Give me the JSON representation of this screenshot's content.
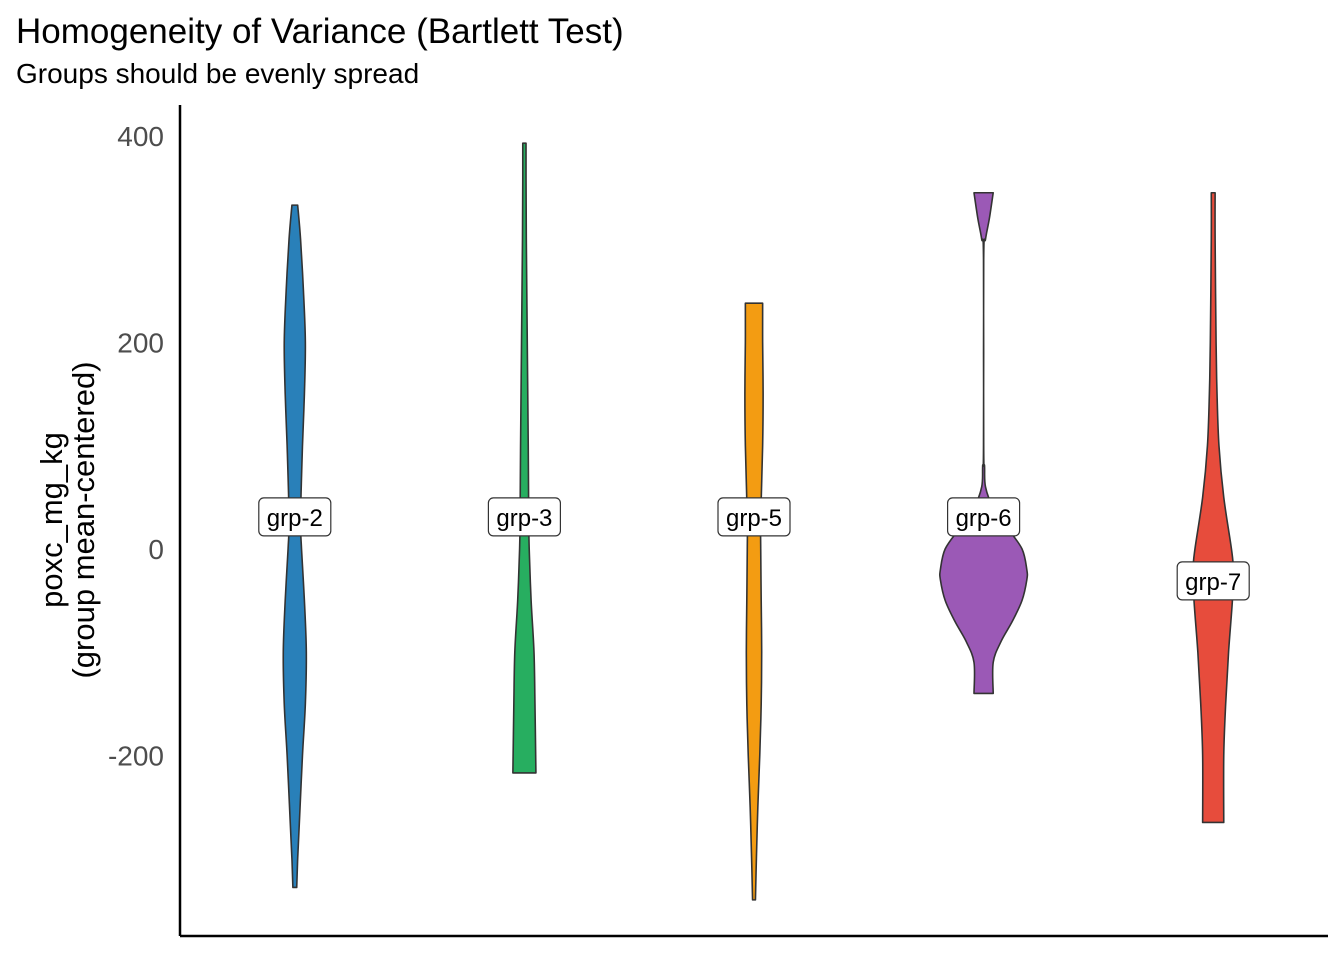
{
  "chart_data": {
    "type": "violin",
    "title": "Homogeneity of Variance (Bartlett Test)",
    "subtitle": "Groups should be evenly spread",
    "ylabel_line1": "poxc_mg_kg",
    "ylabel_line2": "(group mean-centered)",
    "xlabel": "",
    "ylim": [
      -375,
      430
    ],
    "yticks": [
      -200,
      0,
      200,
      400
    ],
    "grid": false,
    "legend": "none",
    "series": [
      {
        "name": "grp-2",
        "color": "#2980b9",
        "label_y": 30,
        "profile": [
          [
            -328,
            2
          ],
          [
            -300,
            3
          ],
          [
            -260,
            5
          ],
          [
            -200,
            8
          ],
          [
            -150,
            11
          ],
          [
            -100,
            12
          ],
          [
            -50,
            10
          ],
          [
            0,
            7
          ],
          [
            30,
            6
          ],
          [
            100,
            8
          ],
          [
            150,
            10
          ],
          [
            200,
            11
          ],
          [
            250,
            9
          ],
          [
            300,
            6
          ],
          [
            333,
            3
          ]
        ]
      },
      {
        "name": "grp-3",
        "color": "#27ae60",
        "label_y": 30,
        "profile": [
          [
            -217,
            12
          ],
          [
            -150,
            11
          ],
          [
            -100,
            10
          ],
          [
            -50,
            7
          ],
          [
            0,
            5
          ],
          [
            30,
            4.5
          ],
          [
            100,
            4
          ],
          [
            200,
            3
          ],
          [
            300,
            2
          ],
          [
            360,
            1.7
          ],
          [
            393,
            1.7
          ]
        ]
      },
      {
        "name": "grp-5",
        "color": "#f39c12",
        "label_y": 30,
        "profile": [
          [
            -340,
            1.5
          ],
          [
            -300,
            2.5
          ],
          [
            -250,
            4
          ],
          [
            -200,
            6
          ],
          [
            -150,
            7.5
          ],
          [
            -100,
            8
          ],
          [
            -50,
            7.5
          ],
          [
            0,
            7
          ],
          [
            30,
            7
          ],
          [
            100,
            9
          ],
          [
            150,
            9.5
          ],
          [
            200,
            9
          ],
          [
            238,
            9
          ]
        ]
      },
      {
        "name": "grp-6",
        "color": "#9b59b6",
        "label_y": 30,
        "profile": [
          [
            -140,
            10
          ],
          [
            -110,
            10
          ],
          [
            -90,
            18
          ],
          [
            -70,
            30
          ],
          [
            -50,
            40
          ],
          [
            -30,
            45
          ],
          [
            -20,
            45
          ],
          [
            0,
            40
          ],
          [
            20,
            25
          ],
          [
            40,
            10
          ],
          [
            60,
            2
          ],
          [
            80,
            1
          ],
          [
            100,
            0.1
          ],
          [
            280,
            0.1
          ],
          [
            300,
            2
          ],
          [
            320,
            6
          ],
          [
            345,
            10
          ]
        ]
      },
      {
        "name": "grp-7",
        "color": "#e74c3c",
        "label_y": -32,
        "profile": [
          [
            -265,
            11
          ],
          [
            -200,
            11
          ],
          [
            -150,
            13
          ],
          [
            -100,
            16
          ],
          [
            -50,
            20
          ],
          [
            -20,
            21
          ],
          [
            0,
            19
          ],
          [
            50,
            11
          ],
          [
            100,
            6
          ],
          [
            150,
            4
          ],
          [
            200,
            3
          ],
          [
            300,
            2
          ],
          [
            345,
            2
          ]
        ]
      }
    ]
  }
}
